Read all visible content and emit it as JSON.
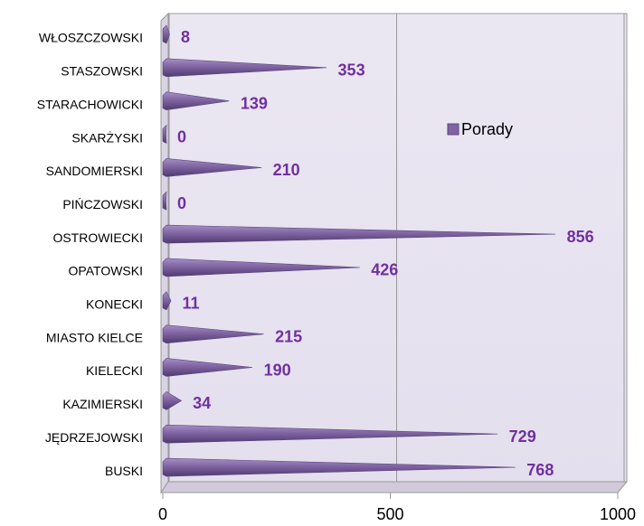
{
  "chart_data": {
    "type": "bar",
    "orientation": "horizontal",
    "shape": "cone",
    "categories": [
      "WŁOSZCZOWSKI",
      "STASZOWSKI",
      "STARACHOWICKI",
      "SKARŻYSKI",
      "SANDOMIERSKI",
      "PIŃCZOWSKI",
      "OSTROWIECKI",
      "OPATOWSKI",
      "KONECKI",
      "MIASTO KIELCE",
      "KIELECKI",
      "KAZIMIERSKI",
      "JĘDRZEJOWSKI",
      "BUSKI"
    ],
    "series": [
      {
        "name": "Porady",
        "color": "#8064a2",
        "values": [
          8,
          353,
          139,
          0,
          210,
          0,
          856,
          426,
          11,
          215,
          190,
          34,
          729,
          768
        ]
      }
    ],
    "xlim": [
      0,
      1000
    ],
    "xticks": [
      0,
      500,
      1000
    ],
    "grid": true,
    "legend": "right"
  }
}
